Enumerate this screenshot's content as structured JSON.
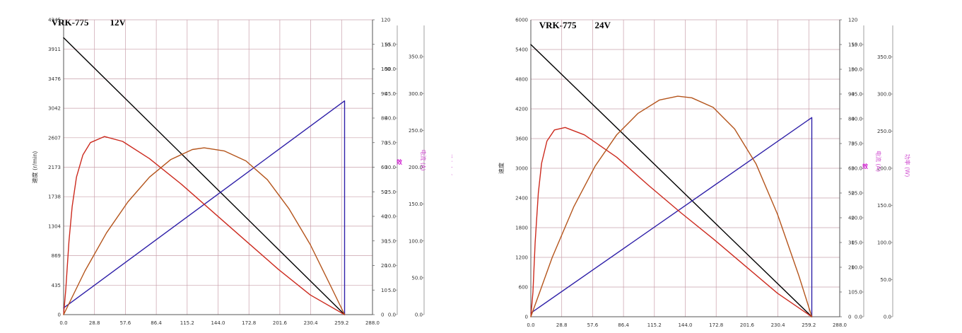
{
  "chart_data": [
    {
      "type": "line",
      "model": "VRK-775",
      "voltage": "12V",
      "xticks": [
        "0.0",
        "28.8",
        "57.6",
        "86.4",
        "115.2",
        "144.0",
        "172.8",
        "201.6",
        "230.4",
        "259.2",
        "288.0"
      ],
      "xlim": [
        0,
        288
      ],
      "y1ticks": [
        "0",
        "435",
        "869",
        "1304",
        "1738",
        "2173",
        "2607",
        "3042",
        "3476",
        "3911",
        "4345"
      ],
      "y1lim": [
        0,
        4345
      ],
      "y2ticks": [
        "0",
        "10",
        "20",
        "30",
        "40",
        "50",
        "60",
        "70",
        "80",
        "90",
        "100",
        "110",
        "120"
      ],
      "y2lim": [
        0,
        120
      ],
      "y3ticks": [
        "0.0",
        "5.0",
        "10.0",
        "15.0",
        "20.0",
        "25.0",
        "30.0",
        "35.0",
        "40.0",
        "45.0",
        "50.0",
        "55.0"
      ],
      "y3lim": [
        0,
        60
      ],
      "y4ticks": [
        "0.0",
        "50.0",
        "100.0",
        "150.0",
        "200.0",
        "250.0",
        "300.0",
        "350.0"
      ],
      "y4lim": [
        0,
        400
      ],
      "y1label": "速度 (r/min)",
      "y3label": "电流 (A)",
      "y4label": "功率 (W)",
      "y2glyph": "效",
      "series": [
        {
          "color": "#000000",
          "points": [
            [
              0,
              4080
            ],
            [
              262,
              0
            ]
          ]
        },
        {
          "color": "#2e1fa8",
          "points": [
            [
              0,
              2.7
            ],
            [
              262,
              87
            ],
            [
              262,
              0
            ]
          ]
        },
        {
          "color": "#cc2a1e",
          "points": [
            [
              0,
              0
            ],
            [
              2,
              10
            ],
            [
              5,
              30
            ],
            [
              8,
              44
            ],
            [
              12,
              56
            ],
            [
              18,
              65
            ],
            [
              25,
              70
            ],
            [
              38,
              72.5
            ],
            [
              55,
              70.5
            ],
            [
              80,
              63.5
            ],
            [
              110,
              53
            ],
            [
              140,
              41.5
            ],
            [
              170,
              30
            ],
            [
              200,
              18.5
            ],
            [
              230,
              8
            ],
            [
              262,
              0
            ]
          ]
        },
        {
          "color": "#b4541b",
          "points": [
            [
              0,
              0
            ],
            [
              20,
              59.5
            ],
            [
              40,
              111
            ],
            [
              60,
              153
            ],
            [
              80,
              186.5
            ],
            [
              100,
              210.5
            ],
            [
              120,
              224
            ],
            [
              131,
              226.3
            ],
            [
              150,
              222
            ],
            [
              170,
              208.5
            ],
            [
              190,
              183
            ],
            [
              210,
              144
            ],
            [
              230,
              95
            ],
            [
              250,
              36
            ],
            [
              262,
              0
            ]
          ]
        }
      ]
    },
    {
      "type": "line",
      "model": "VRK-775",
      "voltage": "24V",
      "xticks": [
        "0.0",
        "28.8",
        "57.6",
        "86.4",
        "115.2",
        "144.0",
        "172.8",
        "201.6",
        "230.4",
        "259.2",
        "288.0"
      ],
      "xlim": [
        0,
        288
      ],
      "y1ticks": [
        "0",
        "600",
        "1200",
        "1800",
        "2400",
        "3000",
        "3600",
        "4200",
        "4800",
        "5400",
        "6000"
      ],
      "y1lim": [
        0,
        6000
      ],
      "y2ticks": [
        "0",
        "10",
        "20",
        "30",
        "40",
        "50",
        "60",
        "70",
        "80",
        "90",
        "100",
        "110",
        "120"
      ],
      "y2lim": [
        0,
        120
      ],
      "y3ticks": [
        "0.0",
        "5.0",
        "10.0",
        "15.0",
        "20.0",
        "25.0",
        "30.0",
        "35.0",
        "40.0",
        "45.0",
        "50.0",
        "55.0"
      ],
      "y3lim": [
        0,
        60
      ],
      "y4ticks": [
        "0.0",
        "50.0",
        "100.0",
        "150.0",
        "200.0",
        "250.0",
        "300.0",
        "350.0"
      ],
      "y4lim": [
        0,
        400
      ],
      "y1label": "速度",
      "y3label": "电流 (A)",
      "y4label": "功率 (W)",
      "y2glyph": "效",
      "series": [
        {
          "color": "#000000",
          "points": [
            [
              0,
              5500
            ],
            [
              262,
              0
            ]
          ]
        },
        {
          "color": "#2e1fa8",
          "points": [
            [
              0,
              1.5
            ],
            [
              262,
              80.5
            ],
            [
              262,
              0
            ]
          ]
        },
        {
          "color": "#cc2a1e",
          "points": [
            [
              0,
              0
            ],
            [
              2,
              10
            ],
            [
              4,
              30
            ],
            [
              7,
              50
            ],
            [
              10,
              62
            ],
            [
              15,
              71
            ],
            [
              22,
              75.5
            ],
            [
              32,
              76.5
            ],
            [
              50,
              73.5
            ],
            [
              80,
              64.5
            ],
            [
              110,
              53
            ],
            [
              140,
              42
            ],
            [
              170,
              31.5
            ],
            [
              200,
              20.5
            ],
            [
              230,
              9.5
            ],
            [
              262,
              0
            ]
          ]
        },
        {
          "color": "#b4541b",
          "points": [
            [
              0,
              0
            ],
            [
              20,
              80
            ],
            [
              40,
              148
            ],
            [
              60,
              203
            ],
            [
              80,
              245
            ],
            [
              100,
              274
            ],
            [
              120,
              292
            ],
            [
              137,
              297
            ],
            [
              150,
              295
            ],
            [
              170,
              282
            ],
            [
              190,
              253
            ],
            [
              210,
              206
            ],
            [
              230,
              138
            ],
            [
              250,
              55
            ],
            [
              262,
              0
            ]
          ]
        }
      ]
    }
  ]
}
